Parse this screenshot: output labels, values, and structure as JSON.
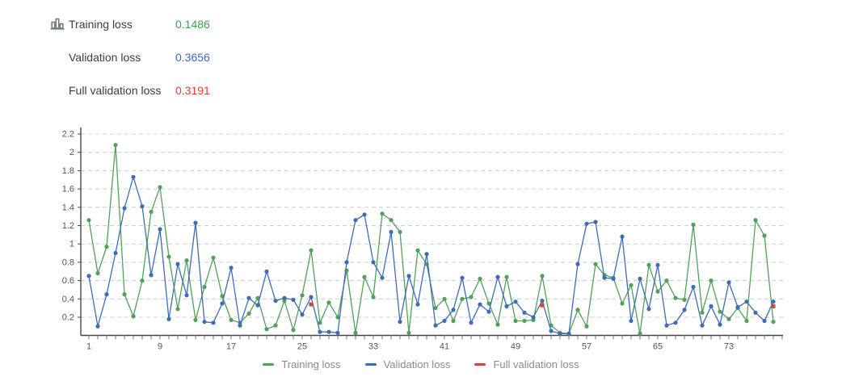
{
  "header": {
    "icon": "bar-chart-icon",
    "rows": [
      {
        "label": "Training loss",
        "value": "0.1486",
        "color": "#3fa24c"
      },
      {
        "label": "Validation loss",
        "value": "0.3656",
        "color": "#3d66c2"
      },
      {
        "label": "Full validation loss",
        "value": "0.3191",
        "color": "#df4331"
      }
    ]
  },
  "chart_data": {
    "type": "line",
    "title": "",
    "xlabel": "",
    "ylabel": "",
    "x_range": [
      1,
      78
    ],
    "ylim": [
      0,
      2.3
    ],
    "ytick_values": [
      0.2,
      0.4,
      0.6,
      0.8,
      1,
      1.2,
      1.4,
      1.6,
      1.8,
      2,
      2.2
    ],
    "ytick_labels": [
      "0.2",
      "0.4",
      "0.6",
      "0.8",
      "1",
      "1.2",
      "1.4",
      "1.6",
      "1.8",
      "2",
      "2.2"
    ],
    "xtick_label_values": [
      1,
      9,
      17,
      25,
      33,
      41,
      49,
      57,
      65,
      73
    ],
    "grid": "horizontal-dashed",
    "legend_position": "bottom",
    "axis_color": "#444444",
    "grid_color": "#cccccc",
    "tick_label_color": "#555555",
    "series": [
      {
        "name": "Training loss",
        "color": "#52a05a",
        "style": "line+markers",
        "values": [
          1.26,
          0.68,
          0.97,
          2.08,
          0.45,
          0.21,
          0.6,
          1.35,
          1.62,
          0.86,
          0.29,
          0.82,
          0.17,
          0.53,
          0.85,
          0.43,
          0.17,
          0.14,
          0.24,
          0.41,
          0.07,
          0.11,
          0.38,
          0.06,
          0.44,
          0.93,
          0.14,
          0.36,
          0.2,
          0.71,
          0.03,
          0.64,
          0.42,
          1.33,
          1.26,
          1.13,
          0.03,
          0.93,
          0.78,
          0.3,
          0.4,
          0.16,
          0.4,
          0.42,
          0.62,
          0.35,
          0.12,
          0.64,
          0.16,
          0.16,
          0.17,
          0.65,
          0.11,
          0.03,
          0.02,
          0.28,
          0.1,
          0.78,
          0.66,
          0.63,
          0.35,
          0.55,
          0.02,
          0.77,
          0.48,
          0.6,
          0.41,
          0.39,
          1.21,
          0.25,
          0.6,
          0.26,
          0.18,
          0.3,
          0.16,
          1.26,
          1.09,
          0.15
        ]
      },
      {
        "name": "Validation loss",
        "color": "#3e6cb7",
        "style": "line+markers",
        "values": [
          0.65,
          0.1,
          0.45,
          0.9,
          1.39,
          1.73,
          1.41,
          0.66,
          1.16,
          0.18,
          0.78,
          0.44,
          1.23,
          0.15,
          0.14,
          0.35,
          0.74,
          0.11,
          0.41,
          0.33,
          0.7,
          0.38,
          0.41,
          0.39,
          0.23,
          0.42,
          0.04,
          0.04,
          0.03,
          0.8,
          1.26,
          1.32,
          0.8,
          0.63,
          1.13,
          0.15,
          0.65,
          0.34,
          0.89,
          0.11,
          0.16,
          0.28,
          0.63,
          0.14,
          0.34,
          0.26,
          0.64,
          0.32,
          0.37,
          0.25,
          0.2,
          0.38,
          0.05,
          0.02,
          0.02,
          0.78,
          1.22,
          1.24,
          0.63,
          0.62,
          1.08,
          0.16,
          0.62,
          0.29,
          0.77,
          0.11,
          0.14,
          0.28,
          0.53,
          0.11,
          0.32,
          0.12,
          0.58,
          0.31,
          0.37,
          0.25,
          0.16,
          0.37
        ]
      },
      {
        "name": "Full validation loss",
        "color": "#d2473d",
        "style": "markers",
        "points": [
          {
            "x": 26,
            "y": 0.34
          },
          {
            "x": 52,
            "y": 0.33
          },
          {
            "x": 78,
            "y": 0.32
          }
        ]
      }
    ]
  }
}
